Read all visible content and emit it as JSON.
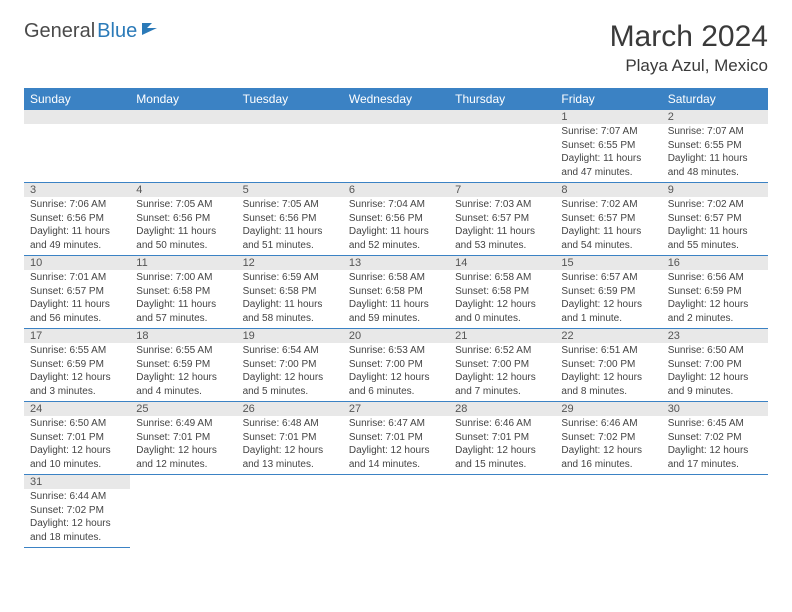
{
  "logo": {
    "part1": "General",
    "part2": "Blue"
  },
  "title": "March 2024",
  "location": "Playa Azul, Mexico",
  "colors": {
    "header_bg": "#3b82c4",
    "header_text": "#ffffff",
    "daynum_bg": "#e8e8e8",
    "border": "#3b82c4",
    "logo_accent": "#2b7ab8",
    "text": "#444444"
  },
  "dayNames": [
    "Sunday",
    "Monday",
    "Tuesday",
    "Wednesday",
    "Thursday",
    "Friday",
    "Saturday"
  ],
  "firstWeekday": 5,
  "daysInMonth": 31,
  "days": {
    "1": {
      "sunrise": "7:07 AM",
      "sunset": "6:55 PM",
      "daylight": "11 hours and 47 minutes."
    },
    "2": {
      "sunrise": "7:07 AM",
      "sunset": "6:55 PM",
      "daylight": "11 hours and 48 minutes."
    },
    "3": {
      "sunrise": "7:06 AM",
      "sunset": "6:56 PM",
      "daylight": "11 hours and 49 minutes."
    },
    "4": {
      "sunrise": "7:05 AM",
      "sunset": "6:56 PM",
      "daylight": "11 hours and 50 minutes."
    },
    "5": {
      "sunrise": "7:05 AM",
      "sunset": "6:56 PM",
      "daylight": "11 hours and 51 minutes."
    },
    "6": {
      "sunrise": "7:04 AM",
      "sunset": "6:56 PM",
      "daylight": "11 hours and 52 minutes."
    },
    "7": {
      "sunrise": "7:03 AM",
      "sunset": "6:57 PM",
      "daylight": "11 hours and 53 minutes."
    },
    "8": {
      "sunrise": "7:02 AM",
      "sunset": "6:57 PM",
      "daylight": "11 hours and 54 minutes."
    },
    "9": {
      "sunrise": "7:02 AM",
      "sunset": "6:57 PM",
      "daylight": "11 hours and 55 minutes."
    },
    "10": {
      "sunrise": "7:01 AM",
      "sunset": "6:57 PM",
      "daylight": "11 hours and 56 minutes."
    },
    "11": {
      "sunrise": "7:00 AM",
      "sunset": "6:58 PM",
      "daylight": "11 hours and 57 minutes."
    },
    "12": {
      "sunrise": "6:59 AM",
      "sunset": "6:58 PM",
      "daylight": "11 hours and 58 minutes."
    },
    "13": {
      "sunrise": "6:58 AM",
      "sunset": "6:58 PM",
      "daylight": "11 hours and 59 minutes."
    },
    "14": {
      "sunrise": "6:58 AM",
      "sunset": "6:58 PM",
      "daylight": "12 hours and 0 minutes."
    },
    "15": {
      "sunrise": "6:57 AM",
      "sunset": "6:59 PM",
      "daylight": "12 hours and 1 minute."
    },
    "16": {
      "sunrise": "6:56 AM",
      "sunset": "6:59 PM",
      "daylight": "12 hours and 2 minutes."
    },
    "17": {
      "sunrise": "6:55 AM",
      "sunset": "6:59 PM",
      "daylight": "12 hours and 3 minutes."
    },
    "18": {
      "sunrise": "6:55 AM",
      "sunset": "6:59 PM",
      "daylight": "12 hours and 4 minutes."
    },
    "19": {
      "sunrise": "6:54 AM",
      "sunset": "7:00 PM",
      "daylight": "12 hours and 5 minutes."
    },
    "20": {
      "sunrise": "6:53 AM",
      "sunset": "7:00 PM",
      "daylight": "12 hours and 6 minutes."
    },
    "21": {
      "sunrise": "6:52 AM",
      "sunset": "7:00 PM",
      "daylight": "12 hours and 7 minutes."
    },
    "22": {
      "sunrise": "6:51 AM",
      "sunset": "7:00 PM",
      "daylight": "12 hours and 8 minutes."
    },
    "23": {
      "sunrise": "6:50 AM",
      "sunset": "7:00 PM",
      "daylight": "12 hours and 9 minutes."
    },
    "24": {
      "sunrise": "6:50 AM",
      "sunset": "7:01 PM",
      "daylight": "12 hours and 10 minutes."
    },
    "25": {
      "sunrise": "6:49 AM",
      "sunset": "7:01 PM",
      "daylight": "12 hours and 12 minutes."
    },
    "26": {
      "sunrise": "6:48 AM",
      "sunset": "7:01 PM",
      "daylight": "12 hours and 13 minutes."
    },
    "27": {
      "sunrise": "6:47 AM",
      "sunset": "7:01 PM",
      "daylight": "12 hours and 14 minutes."
    },
    "28": {
      "sunrise": "6:46 AM",
      "sunset": "7:01 PM",
      "daylight": "12 hours and 15 minutes."
    },
    "29": {
      "sunrise": "6:46 AM",
      "sunset": "7:02 PM",
      "daylight": "12 hours and 16 minutes."
    },
    "30": {
      "sunrise": "6:45 AM",
      "sunset": "7:02 PM",
      "daylight": "12 hours and 17 minutes."
    },
    "31": {
      "sunrise": "6:44 AM",
      "sunset": "7:02 PM",
      "daylight": "12 hours and 18 minutes."
    }
  },
  "labels": {
    "sunrise": "Sunrise:",
    "sunset": "Sunset:",
    "daylight": "Daylight:"
  }
}
